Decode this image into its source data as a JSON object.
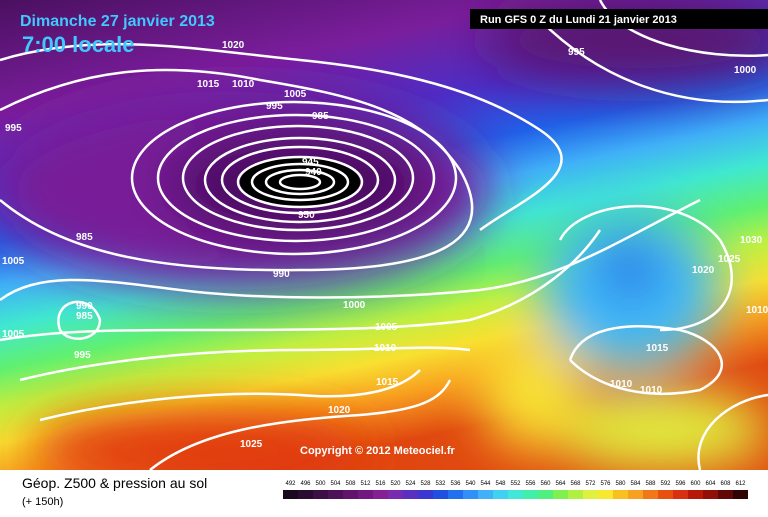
{
  "header": {
    "date": "Dimanche 27 janvier 2013",
    "time": "7:00 locale",
    "run": "Run GFS 0 Z du Lundi 21 janvier 2013"
  },
  "isobar_labels": [
    1020,
    1015,
    1010,
    1005,
    995,
    985,
    995,
    985,
    1005,
    990,
    990,
    985,
    1005,
    995,
    1000,
    1005,
    1010,
    1015,
    1020,
    1025,
    950,
    945,
    940,
    995,
    1000,
    1030,
    1020,
    1025,
    1010,
    1015,
    1010,
    1010
  ],
  "copyright": "Copyright © 2012 Meteociel.fr",
  "footer": {
    "title": "Géop. Z500 & pression au sol",
    "lead": "(+ 150h)"
  },
  "legend": {
    "values": [
      492,
      496,
      500,
      504,
      508,
      512,
      516,
      520,
      524,
      528,
      532,
      536,
      540,
      544,
      548,
      552,
      556,
      560,
      564,
      568,
      572,
      576,
      580,
      584,
      588,
      592,
      596,
      600,
      604,
      608,
      612
    ],
    "colors": [
      "#1a0a1e",
      "#2a0c30",
      "#3c1044",
      "#4e1258",
      "#60146c",
      "#721880",
      "#842094",
      "#7a2ab0",
      "#5a30c0",
      "#3a38d0",
      "#2050e0",
      "#2070f0",
      "#3090f8",
      "#40b0f8",
      "#40d0f0",
      "#40e8d8",
      "#40f0a8",
      "#50f080",
      "#80f050",
      "#b0f040",
      "#e0f040",
      "#f8e830",
      "#f8c020",
      "#f8a020",
      "#f07818",
      "#e85010",
      "#d83010",
      "#b81808",
      "#901008",
      "#600808",
      "#300404"
    ]
  }
}
